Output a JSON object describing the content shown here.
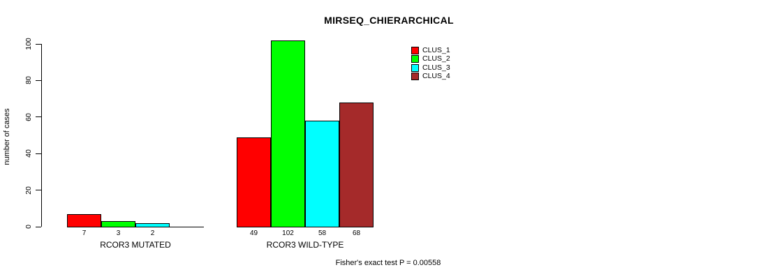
{
  "chart_data": {
    "type": "bar",
    "title": "MIRSEQ_CHIERARCHICAL",
    "ylabel": "number of cases",
    "footer": "Fisher's exact test P = 0.00558",
    "ylim": [
      0,
      100
    ],
    "yticks": [
      0,
      20,
      40,
      60,
      80,
      100
    ],
    "grid": false,
    "legend_position": "top-right",
    "series": [
      {
        "name": "CLUS_1",
        "color": "#FF0000"
      },
      {
        "name": "CLUS_2",
        "color": "#00FF00"
      },
      {
        "name": "CLUS_3",
        "color": "#00FFFF"
      },
      {
        "name": "CLUS_4",
        "color": "#A52A2A"
      }
    ],
    "categories": [
      "RCOR3 MUTATED",
      "RCOR3 WILD-TYPE"
    ],
    "groups": [
      {
        "label": "RCOR3 MUTATED",
        "values": [
          7,
          3,
          2,
          0
        ],
        "value_labels": [
          "7",
          "3",
          "2",
          ""
        ]
      },
      {
        "label": "RCOR3 WILD-TYPE",
        "values": [
          49,
          102,
          58,
          68
        ],
        "value_labels": [
          "49",
          "102",
          "58",
          "68"
        ]
      }
    ]
  }
}
